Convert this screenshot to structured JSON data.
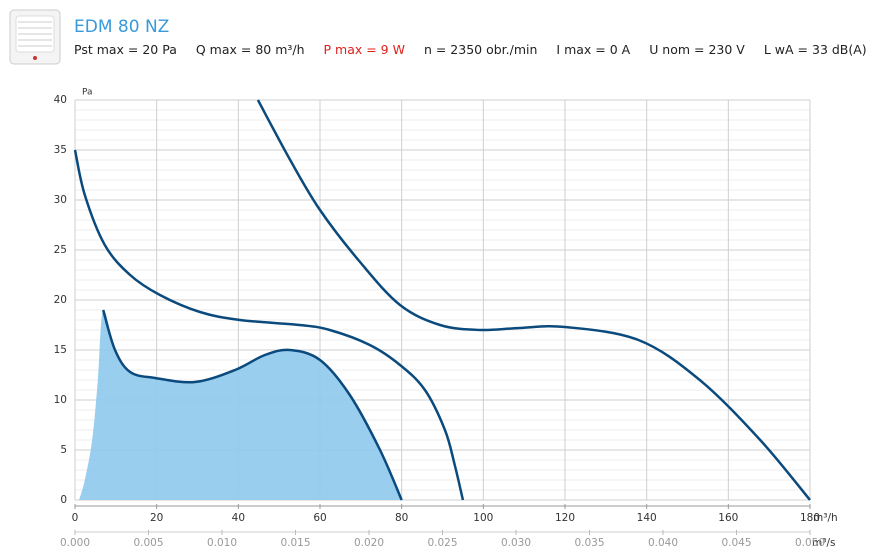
{
  "header": {
    "title": "EDM 80 NZ",
    "specs": [
      "Pst max = 20 Pa",
      "Q max = 80 m³/h",
      "P max = 9 W",
      "n = 2350 obr./min",
      "I max = 0 A",
      "U nom = 230 V",
      "L wA = 33 dB(A)"
    ]
  },
  "chart_data": {
    "type": "line",
    "ylabel": "Pa",
    "xlabel": "m³/h",
    "x2label": "m³/s",
    "xlim": [
      0,
      180
    ],
    "xticks": [
      0,
      20,
      40,
      60,
      80,
      100,
      120,
      140,
      160,
      180
    ],
    "x2lim": [
      0,
      0.05
    ],
    "x2ticks": [
      {
        "value": 0,
        "label": "0.000"
      },
      {
        "value": 0.005,
        "label": "0.005"
      },
      {
        "value": 0.01,
        "label": "0.010"
      },
      {
        "value": 0.015,
        "label": "0.015"
      },
      {
        "value": 0.02,
        "label": "0.020"
      },
      {
        "value": 0.025,
        "label": "0.025"
      },
      {
        "value": 0.03,
        "label": "0.030"
      },
      {
        "value": 0.035,
        "label": "0.035"
      },
      {
        "value": 0.04,
        "label": "0.040"
      },
      {
        "value": 0.045,
        "label": "0.045"
      },
      {
        "value": 0.05,
        "label": "0.050"
      }
    ],
    "ylim": [
      0,
      40
    ],
    "yticks": [
      0,
      5,
      10,
      15,
      20,
      25,
      30,
      35,
      40
    ],
    "grid": true,
    "y_minor_step": 1,
    "series": [
      {
        "color": "#0b4a7d",
        "x": [
          44.8,
          52.7,
          60,
          69.8,
          79.6,
          89.4,
          99.2,
          109,
          120,
          138,
          153,
          167.8,
          180
        ],
        "values": [
          40,
          34,
          29,
          23.8,
          19.5,
          17.5,
          17,
          17.2,
          17.3,
          16,
          12,
          6,
          0
        ]
      },
      {
        "color": "#0b4a7d",
        "x": [
          0,
          2.4,
          7.3,
          13.5,
          20.8,
          30.6,
          40.4,
          55,
          62.4,
          72.2,
          79.6,
          85.7,
          90.6,
          93,
          95
        ],
        "values": [
          35,
          30.5,
          25.5,
          22.5,
          20.5,
          18.8,
          18,
          17.5,
          17,
          15.5,
          13.5,
          11,
          7,
          3.5,
          0
        ]
      },
      {
        "color": "#0b4a7d",
        "x": [
          6.9,
          9.8,
          13.5,
          19.6,
          29.4,
          39.2,
          46.5,
          52.7,
          60,
          67.3,
          74.7,
          80
        ],
        "values": [
          19,
          15,
          12.8,
          12.2,
          11.8,
          13,
          14.5,
          15,
          14,
          10.5,
          5,
          0
        ]
      }
    ],
    "area": {
      "color": "#8ec9ec",
      "x": [
        1,
        2.4,
        4.2,
        5.6,
        6.9,
        9.8,
        13.5,
        19.6,
        29.4,
        39.2,
        46.5,
        52.7,
        60,
        67.3,
        74.7,
        80
      ],
      "values": [
        0,
        2,
        6,
        12,
        19,
        15,
        12.8,
        12.2,
        11.8,
        13,
        14.5,
        15,
        14,
        10.5,
        5,
        0
      ]
    }
  }
}
